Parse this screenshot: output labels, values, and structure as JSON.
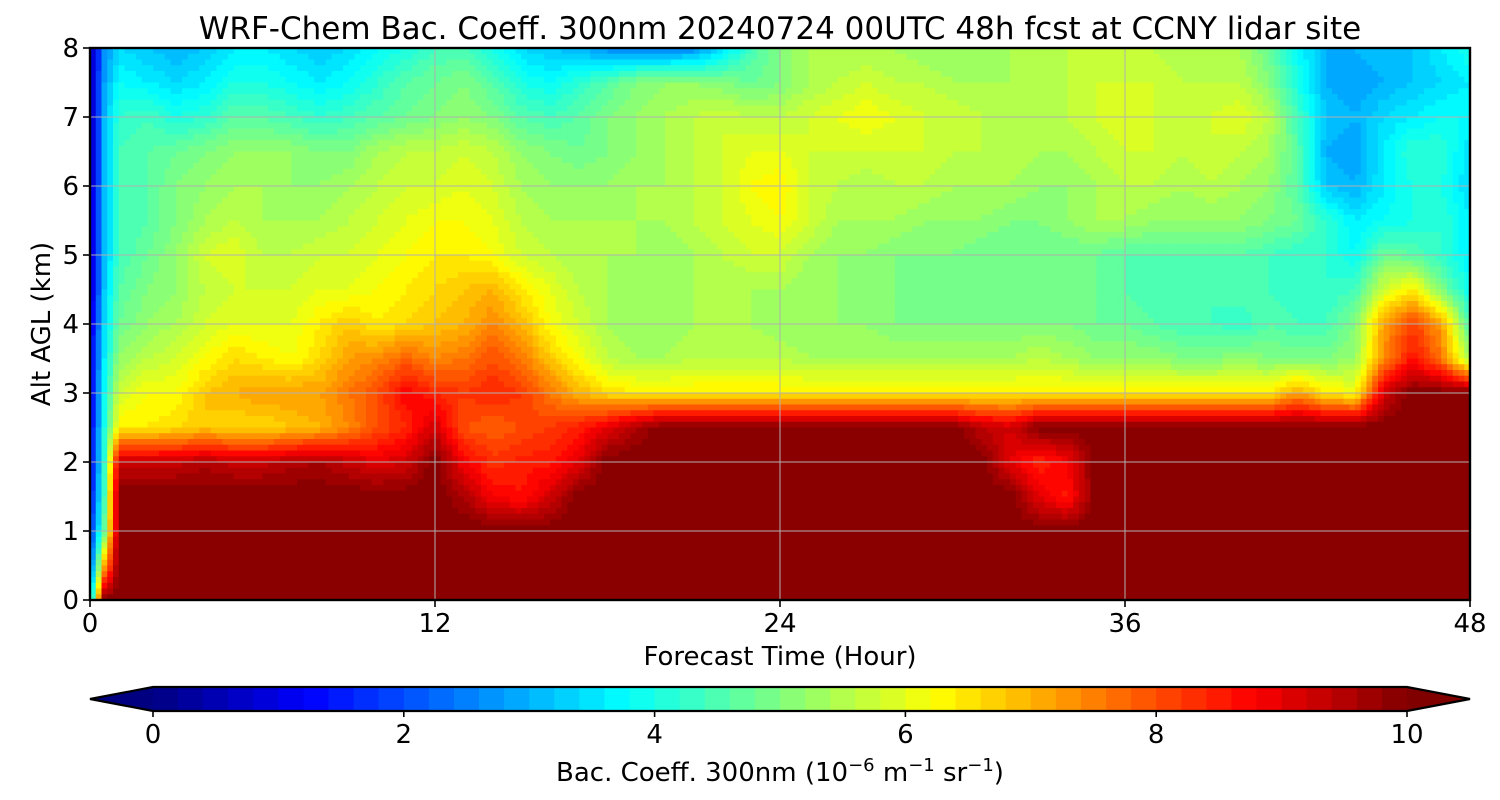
{
  "chart_data": {
    "type": "heatmap",
    "title": "WRF-Chem Bac. Coeff. 300nm  20240724 00UTC 48h fcst at CCNY lidar site",
    "xlabel": "Forecast Time (Hour)",
    "ylabel": "Alt AGL (km)",
    "xlim": [
      0,
      48
    ],
    "ylim": [
      0,
      8
    ],
    "x_ticks": [
      "0",
      "12",
      "24",
      "36",
      "48"
    ],
    "y_ticks": [
      "0",
      "1",
      "2",
      "3",
      "4",
      "5",
      "6",
      "7",
      "8"
    ],
    "grid": true,
    "colormap": "jet",
    "colorbar": {
      "label_main": "Bac. Coeff. 300nm  (10",
      "label_exp1": "−6",
      "label_unit1": " m",
      "label_exp2": "−1",
      "label_unit2": " sr",
      "label_exp3": "−1",
      "label_close": ")",
      "range": [
        0,
        10
      ],
      "ticks": [
        "0",
        "2",
        "4",
        "6",
        "8",
        "10"
      ],
      "extend": "both",
      "orientation": "horizontal"
    },
    "x": [
      0,
      0.5,
      1,
      2,
      3,
      4,
      5,
      6,
      7,
      8,
      9,
      10,
      11,
      12,
      13,
      14,
      15,
      16,
      17,
      18,
      19,
      20,
      21,
      22,
      23,
      24,
      25,
      26,
      27,
      28,
      29,
      30,
      31,
      32,
      33,
      34,
      35,
      36,
      37,
      38,
      39,
      40,
      41,
      42,
      43,
      44,
      45,
      46,
      47,
      48
    ],
    "y": [
      0,
      0.5,
      1,
      1.5,
      2,
      2.5,
      3,
      3.5,
      4,
      4.5,
      5,
      5.5,
      6,
      6.5,
      7,
      7.5,
      8
    ],
    "values": [
      [
        3.0,
        10,
        10,
        10,
        10,
        10,
        10,
        10,
        10,
        10,
        10,
        10,
        10,
        10,
        10,
        10,
        10,
        10,
        10,
        10,
        10,
        10,
        10,
        10,
        10,
        10,
        10,
        10,
        10,
        10,
        10,
        10,
        10,
        10,
        10,
        10,
        10,
        10,
        10,
        10,
        10,
        10,
        10,
        10,
        10,
        10,
        10,
        10,
        10,
        10
      ],
      [
        2.0,
        7.0,
        10,
        10,
        10,
        10,
        10,
        10,
        10,
        10,
        10,
        10,
        10,
        10,
        10,
        10,
        10,
        10,
        10,
        10,
        10,
        10,
        10,
        10,
        10,
        10,
        10,
        10,
        10,
        10,
        10,
        10,
        10,
        10,
        10,
        10,
        10,
        10,
        10,
        10,
        10,
        10,
        10,
        10,
        10,
        10,
        10,
        10,
        10,
        10
      ],
      [
        1.5,
        4.8,
        10,
        10,
        10,
        10,
        10,
        10,
        10,
        10,
        10,
        10,
        10,
        10,
        10,
        10,
        10,
        10,
        10,
        10,
        10,
        10,
        10,
        10,
        10,
        10,
        10,
        10,
        10,
        10,
        10,
        10,
        10,
        10,
        10,
        10,
        10,
        10,
        10,
        10,
        10,
        10,
        10,
        10,
        10,
        10,
        10,
        10,
        10,
        10
      ],
      [
        1.2,
        4.4,
        10,
        10,
        10,
        10,
        10,
        10,
        10,
        10,
        10,
        10,
        10,
        10,
        9.6,
        8.8,
        8.6,
        9.2,
        10,
        10,
        10,
        10,
        10,
        10,
        10,
        10,
        10,
        10,
        10,
        10,
        10,
        10,
        10,
        10,
        9.0,
        8.5,
        10,
        10,
        10,
        10,
        10,
        10,
        10,
        10,
        10,
        10,
        10,
        10,
        10,
        10
      ],
      [
        1.0,
        4.2,
        9.3,
        9.3,
        9.3,
        9.5,
        9.3,
        9.3,
        9.5,
        9.6,
        9.3,
        9.0,
        9.2,
        10,
        8.8,
        8.3,
        8.5,
        8.5,
        9.0,
        10,
        10,
        10,
        10,
        10,
        10,
        10,
        10,
        10,
        10,
        10,
        10,
        10,
        10,
        9.0,
        8.4,
        8.8,
        10,
        10,
        10,
        10,
        10,
        10,
        10,
        10,
        10,
        10,
        10,
        10,
        10,
        10
      ],
      [
        1.0,
        4.0,
        6.4,
        6.4,
        6.6,
        6.8,
        6.6,
        6.6,
        6.8,
        7.0,
        7.4,
        8.0,
        8.4,
        9.2,
        8.0,
        7.8,
        8.0,
        8.2,
        8.5,
        9.0,
        9.6,
        10,
        10,
        10,
        10,
        10,
        10,
        10,
        10,
        10,
        10,
        10,
        9.4,
        9.2,
        10,
        10,
        10,
        10,
        10,
        10,
        10,
        10,
        10,
        10,
        10,
        10,
        10,
        10,
        10,
        10
      ],
      [
        1.0,
        3.8,
        5.8,
        6.2,
        6.2,
        6.8,
        7.0,
        7.2,
        7.2,
        7.2,
        7.6,
        8.0,
        8.8,
        8.4,
        8.2,
        8.4,
        8.2,
        7.6,
        7.0,
        6.6,
        6.4,
        6.4,
        6.4,
        6.4,
        6.4,
        6.4,
        6.4,
        6.4,
        6.4,
        6.4,
        6.4,
        6.4,
        6.4,
        6.4,
        6.4,
        6.4,
        6.4,
        6.4,
        6.4,
        6.4,
        6.4,
        6.4,
        6.4,
        7.2,
        6.4,
        6.2,
        9.2,
        10,
        10,
        10
      ],
      [
        1.0,
        3.6,
        5.2,
        5.6,
        5.8,
        6.2,
        6.6,
        6.4,
        6.2,
        6.6,
        7.2,
        7.4,
        7.8,
        7.4,
        7.6,
        8.0,
        7.6,
        6.8,
        6.2,
        5.6,
        5.4,
        5.4,
        5.6,
        5.6,
        5.6,
        5.6,
        5.4,
        5.4,
        5.4,
        5.4,
        5.4,
        5.4,
        5.4,
        5.4,
        5.6,
        5.4,
        5.2,
        5.2,
        5.2,
        5.0,
        5.0,
        5.2,
        5.0,
        5.0,
        5.0,
        5.2,
        7.4,
        8.6,
        7.6,
        5.4
      ],
      [
        0.8,
        3.4,
        4.8,
        5.2,
        5.4,
        5.8,
        6.0,
        6.0,
        6.0,
        6.4,
        6.8,
        6.4,
        6.6,
        6.8,
        7.0,
        7.4,
        7.0,
        6.2,
        5.8,
        5.4,
        5.2,
        5.2,
        5.4,
        5.4,
        5.4,
        5.2,
        5.2,
        5.2,
        5.2,
        5.0,
        5.0,
        5.0,
        5.0,
        5.0,
        5.0,
        5.0,
        4.8,
        4.8,
        4.6,
        4.4,
        4.4,
        4.2,
        4.6,
        4.4,
        4.4,
        5.0,
        7.2,
        8.2,
        7.2,
        4.4
      ],
      [
        0.6,
        3.2,
        4.6,
        5.0,
        5.2,
        5.6,
        5.8,
        5.8,
        5.8,
        6.0,
        6.0,
        6.2,
        6.4,
        6.6,
        6.8,
        7.0,
        6.4,
        6.0,
        5.6,
        5.4,
        5.2,
        5.2,
        5.4,
        5.4,
        5.4,
        5.4,
        5.2,
        5.2,
        5.0,
        5.0,
        4.8,
        4.8,
        5.0,
        4.8,
        4.8,
        4.8,
        4.8,
        4.6,
        4.4,
        4.4,
        4.4,
        4.6,
        4.4,
        4.2,
        4.2,
        4.4,
        5.8,
        6.4,
        5.0,
        3.8
      ],
      [
        0.6,
        3.0,
        4.4,
        4.8,
        5.2,
        5.8,
        6.0,
        5.6,
        5.6,
        5.8,
        5.8,
        6.0,
        6.2,
        6.4,
        6.4,
        6.2,
        5.8,
        5.6,
        5.4,
        5.4,
        5.4,
        5.2,
        5.4,
        5.6,
        5.8,
        5.8,
        5.4,
        5.2,
        5.2,
        5.0,
        5.0,
        5.0,
        4.8,
        4.8,
        4.8,
        4.8,
        4.8,
        4.6,
        4.6,
        4.6,
        4.6,
        4.6,
        4.4,
        4.2,
        4.2,
        3.8,
        4.8,
        4.6,
        4.2,
        3.6
      ],
      [
        0.6,
        3.0,
        4.4,
        4.6,
        5.0,
        5.4,
        5.6,
        5.4,
        5.4,
        5.4,
        5.6,
        5.8,
        6.0,
        6.2,
        6.2,
        6.0,
        5.6,
        5.4,
        5.4,
        5.4,
        5.4,
        5.4,
        5.6,
        5.8,
        6.0,
        6.2,
        5.8,
        5.4,
        5.4,
        5.4,
        5.2,
        5.2,
        5.2,
        5.0,
        5.0,
        5.2,
        5.4,
        5.4,
        5.2,
        5.2,
        5.2,
        5.2,
        5.0,
        4.8,
        4.2,
        3.6,
        3.8,
        4.0,
        4.2,
        3.6
      ],
      [
        0.5,
        3.0,
        4.4,
        4.6,
        5.0,
        5.2,
        5.4,
        5.4,
        5.2,
        5.2,
        5.4,
        5.6,
        5.8,
        5.8,
        6.0,
        5.8,
        5.4,
        5.2,
        5.2,
        5.2,
        5.4,
        5.4,
        5.6,
        5.8,
        6.2,
        6.4,
        5.8,
        5.6,
        5.4,
        5.6,
        5.6,
        5.4,
        5.4,
        5.4,
        5.2,
        5.2,
        5.4,
        5.6,
        5.6,
        5.4,
        5.6,
        5.4,
        5.2,
        4.6,
        3.2,
        3.0,
        3.6,
        4.0,
        4.0,
        3.4
      ],
      [
        0.4,
        3.0,
        4.4,
        4.6,
        4.8,
        5.0,
        5.2,
        5.2,
        5.2,
        5.0,
        5.0,
        5.4,
        5.6,
        5.6,
        5.8,
        5.6,
        5.2,
        5.0,
        4.8,
        5.0,
        5.2,
        5.4,
        5.6,
        5.8,
        6.0,
        6.0,
        5.8,
        5.8,
        5.8,
        5.8,
        5.8,
        5.6,
        5.6,
        5.6,
        5.4,
        5.4,
        5.6,
        5.8,
        5.8,
        5.6,
        5.8,
        5.6,
        5.4,
        4.6,
        3.0,
        2.8,
        3.6,
        4.2,
        4.2,
        3.4
      ],
      [
        0.4,
        3.0,
        4.2,
        4.4,
        4.0,
        4.2,
        4.6,
        4.6,
        4.4,
        4.2,
        4.4,
        4.6,
        4.8,
        5.0,
        5.2,
        5.0,
        4.6,
        4.4,
        4.6,
        5.0,
        5.2,
        5.4,
        5.6,
        5.8,
        5.6,
        5.6,
        5.8,
        6.0,
        6.2,
        6.0,
        5.8,
        5.8,
        5.6,
        5.6,
        5.6,
        5.6,
        5.8,
        6.0,
        5.8,
        5.6,
        5.8,
        6.0,
        5.6,
        4.4,
        3.2,
        3.0,
        3.4,
        3.6,
        3.8,
        3.8
      ],
      [
        0.4,
        2.8,
        3.8,
        3.6,
        3.4,
        3.6,
        4.0,
        4.0,
        3.8,
        3.6,
        3.8,
        4.2,
        4.6,
        4.8,
        5.0,
        4.6,
        4.0,
        3.8,
        4.2,
        4.6,
        5.0,
        5.2,
        5.2,
        5.0,
        4.8,
        5.0,
        5.4,
        5.6,
        5.8,
        5.6,
        5.6,
        5.4,
        5.4,
        5.4,
        5.6,
        5.6,
        5.8,
        5.8,
        5.8,
        5.6,
        5.6,
        5.6,
        5.0,
        4.0,
        3.0,
        2.8,
        3.0,
        3.2,
        3.4,
        3.6
      ],
      [
        0.4,
        2.6,
        3.4,
        3.2,
        3.0,
        3.2,
        3.6,
        3.6,
        3.4,
        3.2,
        3.4,
        3.8,
        4.0,
        4.4,
        4.4,
        4.0,
        3.4,
        3.2,
        3.0,
        2.6,
        2.6,
        2.4,
        2.6,
        3.4,
        4.4,
        5.0,
        5.4,
        5.4,
        5.4,
        5.4,
        5.2,
        5.2,
        5.2,
        5.4,
        5.4,
        5.6,
        5.8,
        5.8,
        5.6,
        5.4,
        5.4,
        5.4,
        4.8,
        3.8,
        3.0,
        3.0,
        3.2,
        3.2,
        3.6,
        4.0
      ]
    ]
  }
}
